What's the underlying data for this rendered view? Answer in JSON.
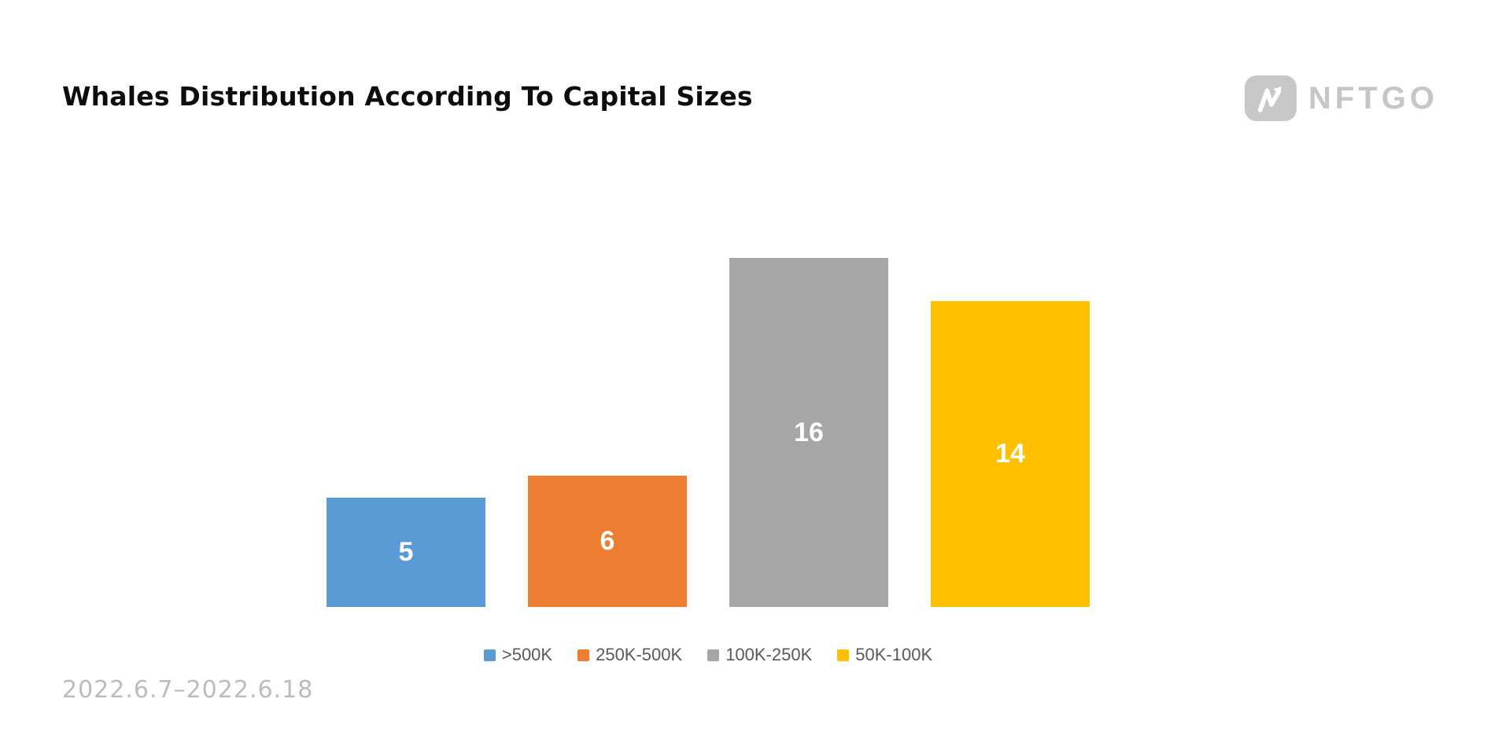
{
  "header": {
    "title": "Whales Distribution According To Capital Sizes",
    "logo": {
      "wordmark": "NFTGO",
      "icon": "nftgo-n-arrow-icon",
      "color": "#c6c6c6",
      "badge_color": "#c7c7c7"
    }
  },
  "footer": {
    "date_range": "2022.6.7–2022.6.18"
  },
  "chart_data": {
    "type": "bar",
    "title": "Whales Distribution According To Capital Sizes",
    "categories": [
      ">500K",
      "250K-500K",
      "100K-250K",
      "50K-100K"
    ],
    "values": [
      5,
      6,
      16,
      14
    ],
    "data_labels": [
      "5",
      "6",
      "16",
      "14"
    ],
    "colors": [
      "#5b9bd5",
      "#ed7d31",
      "#a6a6a6",
      "#ffc000"
    ],
    "data_label_color": "#ffffff",
    "xlabel": "",
    "ylabel": "",
    "ylim": [
      0,
      16
    ],
    "grid": false,
    "axes_visible": false,
    "legend_position": "bottom",
    "legend_text_color": "#595959",
    "annotations": [
      "2022.6.7–2022.6.18"
    ]
  }
}
